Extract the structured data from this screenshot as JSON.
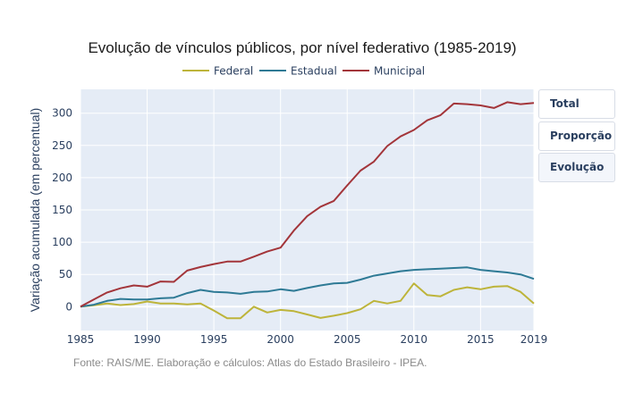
{
  "chart_data": {
    "type": "line",
    "title": "Evolução de vínculos públicos, por nível federativo (1985-2019)",
    "xlabel": "",
    "ylabel": "Variação acumulada (em percentual)",
    "xlim": [
      1985,
      2019
    ],
    "ylim": [
      -37,
      337
    ],
    "grid": true,
    "legend_position": "top-center",
    "x_ticks": [
      "1985",
      "1990",
      "1995",
      "2000",
      "2005",
      "2010",
      "2015",
      "2019"
    ],
    "x_tick_values": [
      1985,
      1990,
      1995,
      2000,
      2005,
      2010,
      2015,
      2019
    ],
    "y_ticks": [
      "0",
      "50",
      "100",
      "150",
      "200",
      "250",
      "300"
    ],
    "y_tick_values": [
      0,
      50,
      100,
      150,
      200,
      250,
      300
    ],
    "x": [
      1985,
      1986,
      1987,
      1988,
      1989,
      1990,
      1991,
      1992,
      1993,
      1994,
      1995,
      1996,
      1997,
      1998,
      1999,
      2000,
      2001,
      2002,
      2003,
      2004,
      2005,
      2006,
      2007,
      2008,
      2009,
      2010,
      2011,
      2012,
      2013,
      2014,
      2015,
      2016,
      2017,
      2018,
      2019
    ],
    "series": [
      {
        "name": "Federal",
        "color": "#bdb43a",
        "values": [
          0,
          2,
          5,
          2.5,
          4,
          8,
          5,
          5,
          3.5,
          5,
          -6,
          -18,
          -18,
          0,
          -9,
          -5,
          -7,
          -12,
          -17.5,
          -14,
          -10,
          -4,
          9,
          5,
          9,
          36,
          18,
          16,
          26,
          30,
          27,
          31,
          32,
          23,
          5
        ]
      },
      {
        "name": "Estadual",
        "color": "#2e7a95",
        "values": [
          0,
          3,
          9,
          12,
          11,
          11,
          13,
          14,
          21,
          26,
          23,
          22,
          20,
          23,
          23.5,
          27,
          24.5,
          29,
          33,
          36,
          37,
          42,
          48,
          51.5,
          55,
          57,
          58,
          59,
          60,
          61,
          57,
          55,
          53,
          50,
          43
        ]
      },
      {
        "name": "Municipal",
        "color": "#a3353a",
        "values": [
          0,
          11,
          22,
          28.5,
          33,
          31,
          39,
          38.5,
          56,
          61.5,
          66,
          70,
          70,
          77.5,
          85.5,
          91.5,
          118,
          140.5,
          155,
          164,
          188,
          211,
          225,
          249,
          264,
          274,
          289,
          297,
          315,
          314,
          312,
          308,
          317,
          314,
          316
        ]
      }
    ],
    "source_note": "Fonte: RAIS/ME. Elaboração e cálculos: Atlas do Estado Brasileiro - IPEA."
  },
  "buttons": [
    {
      "label": "Total",
      "active": false
    },
    {
      "label": "Proporção",
      "active": false
    },
    {
      "label": "Evolução",
      "active": true
    }
  ],
  "colors": {
    "plot_bg": "#e5ecf6",
    "grid": "#ffffff",
    "axis_text": "#2a3f5f"
  }
}
